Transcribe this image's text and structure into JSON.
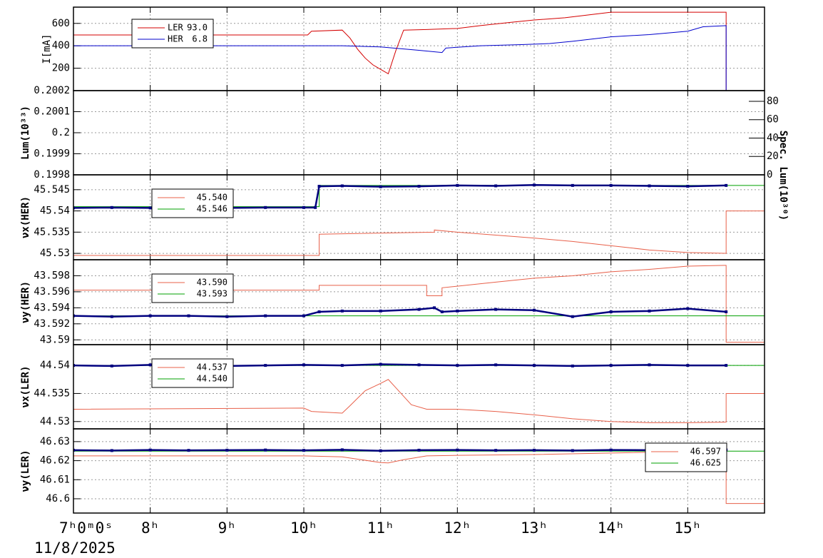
{
  "chart_data": [
    {
      "type": "line",
      "ylabel": "I[mA]",
      "xlim": [
        7,
        16
      ],
      "ylim": [
        0,
        745
      ],
      "yticks": [
        200,
        400,
        600
      ],
      "grid": true,
      "legend": "upper left",
      "series": [
        {
          "name": "LER",
          "legend_label": "93.0",
          "color": "#d40000",
          "x": [
            7,
            10.05,
            10.1,
            10.5,
            10.6,
            10.7,
            10.8,
            10.9,
            11.0,
            11.1,
            11.2,
            11.3,
            11.6,
            12.0,
            12.3,
            12.7,
            13.0,
            13.4,
            13.7,
            14.0,
            15.5,
            15.5,
            16
          ],
          "values": [
            497,
            497,
            530,
            540,
            470,
            370,
            290,
            230,
            190,
            150,
            360,
            540,
            545,
            555,
            580,
            610,
            630,
            650,
            675,
            700,
            700,
            0,
            0
          ]
        },
        {
          "name": "HER",
          "legend_label": "6.8",
          "color": "#0000cc",
          "x": [
            7,
            10.5,
            11.0,
            11.5,
            11.8,
            11.85,
            12.3,
            12.8,
            13.2,
            13.5,
            14.0,
            14.5,
            15.0,
            15.2,
            15.5,
            15.5,
            16
          ],
          "values": [
            400,
            400,
            390,
            360,
            340,
            380,
            400,
            410,
            420,
            440,
            480,
            500,
            530,
            570,
            580,
            0,
            0
          ]
        }
      ]
    },
    {
      "type": "line",
      "ylabel": "Lum(10³³)",
      "y2label": "Spec. Lum(10³⁰)",
      "xlim": [
        7,
        16
      ],
      "ylim": [
        0.1998,
        0.2002
      ],
      "yticks": [
        0.1998,
        0.1999,
        0.2,
        0.2001,
        0.2002
      ],
      "y2lim": [
        0,
        91.6
      ],
      "y2ticks": [
        0,
        20,
        40,
        60,
        80
      ],
      "grid": true,
      "series": []
    },
    {
      "type": "line",
      "ylabel": "νx(HER)",
      "xlim": [
        7,
        16
      ],
      "ylim": [
        45.5285,
        45.5485
      ],
      "yticks": [
        45.53,
        45.535,
        45.54,
        45.545
      ],
      "grid": true,
      "legend": "upper left",
      "series": [
        {
          "name": "45.540",
          "color": "#e8604a",
          "x": [
            7,
            10.2,
            10.2,
            11.7,
            11.7,
            12,
            12.5,
            13,
            13.5,
            14,
            14.5,
            15,
            15.5,
            15.5,
            16
          ],
          "values": [
            45.5295,
            45.5295,
            45.5345,
            45.535,
            45.5355,
            45.535,
            45.5343,
            45.5336,
            45.5328,
            45.5318,
            45.5308,
            45.5302,
            45.53,
            45.54,
            45.54
          ]
        },
        {
          "name": "45.546",
          "color": "#00a000",
          "x": [
            7,
            10.2,
            10.2,
            16
          ],
          "values": [
            45.541,
            45.541,
            45.546,
            45.546
          ]
        },
        {
          "color": "#00007f",
          "markers": true,
          "x": [
            7,
            7.5,
            8,
            8.5,
            9,
            9.5,
            10,
            10.15,
            10.2,
            10.5,
            11,
            11.5,
            12,
            12.5,
            13,
            13.5,
            14,
            14.5,
            15,
            15.5
          ],
          "values": [
            45.5407,
            45.5408,
            45.5407,
            45.5408,
            45.5407,
            45.5408,
            45.5408,
            45.5408,
            45.5458,
            45.5459,
            45.5457,
            45.5458,
            45.546,
            45.5459,
            45.5461,
            45.546,
            45.546,
            45.5459,
            45.5458,
            45.546
          ]
        }
      ]
    },
    {
      "type": "line",
      "ylabel": "νy(HER)",
      "xlim": [
        7,
        16
      ],
      "ylim": [
        43.5894,
        43.6
      ],
      "yticks": [
        43.59,
        43.592,
        43.594,
        43.596,
        43.598
      ],
      "grid": true,
      "legend": "upper left",
      "series": [
        {
          "name": "43.590",
          "color": "#e8604a",
          "x": [
            7,
            10.2,
            10.2,
            11.6,
            11.6,
            11.8,
            11.8,
            12.5,
            13,
            13.5,
            14,
            14.5,
            15,
            15.5,
            15.5,
            16
          ],
          "values": [
            43.5962,
            43.5962,
            43.5968,
            43.5968,
            43.5955,
            43.5955,
            43.5965,
            43.5972,
            43.5977,
            43.598,
            43.5985,
            43.5988,
            43.5992,
            43.5993,
            43.5897,
            43.5897
          ]
        },
        {
          "name": "43.593",
          "color": "#00a000",
          "x": [
            7,
            16
          ],
          "values": [
            43.593,
            43.593
          ]
        },
        {
          "color": "#00007f",
          "markers": true,
          "x": [
            7,
            7.5,
            8,
            8.5,
            9,
            9.5,
            10,
            10.2,
            10.5,
            11,
            11.5,
            11.7,
            11.8,
            12,
            12.5,
            13,
            13.5,
            14,
            14.5,
            15,
            15.5
          ],
          "values": [
            43.593,
            43.5929,
            43.593,
            43.593,
            43.5929,
            43.593,
            43.593,
            43.5935,
            43.5936,
            43.5936,
            43.5938,
            43.594,
            43.5935,
            43.5936,
            43.5938,
            43.5937,
            43.5929,
            43.5935,
            43.5936,
            43.5939,
            43.5935
          ]
        }
      ]
    },
    {
      "type": "line",
      "ylabel": "νx(LER)",
      "xlim": [
        7,
        16
      ],
      "ylim": [
        44.5287,
        44.5437
      ],
      "yticks": [
        44.53,
        44.535,
        44.54
      ],
      "grid": true,
      "legend": "upper left",
      "series": [
        {
          "name": "44.537",
          "color": "#e8604a",
          "x": [
            7,
            10,
            10.1,
            10.5,
            10.6,
            10.8,
            11.0,
            11.1,
            11.2,
            11.4,
            11.6,
            12,
            12.5,
            13,
            13.5,
            14,
            14.5,
            15,
            15.5,
            15.5,
            16
          ],
          "values": [
            44.5322,
            44.5324,
            44.5318,
            44.5315,
            44.5328,
            44.5355,
            44.5368,
            44.5375,
            44.536,
            44.533,
            44.5322,
            44.5322,
            44.5318,
            44.5312,
            44.5305,
            44.53,
            44.5298,
            44.5298,
            44.5299,
            44.535,
            44.535
          ]
        },
        {
          "name": "44.540",
          "color": "#00a000",
          "x": [
            7,
            16
          ],
          "values": [
            44.54,
            44.54
          ]
        },
        {
          "color": "#00007f",
          "markers": true,
          "x": [
            7,
            7.5,
            8,
            8.5,
            9,
            9.5,
            10,
            10.5,
            11,
            11.5,
            12,
            12.5,
            13,
            13.5,
            14,
            14.5,
            15,
            15.5
          ],
          "values": [
            44.54,
            44.5399,
            44.5401,
            44.54,
            44.5399,
            44.54,
            44.5401,
            44.54,
            44.5402,
            44.5401,
            44.54,
            44.5401,
            44.54,
            44.5399,
            44.54,
            44.5401,
            44.54,
            44.54
          ]
        }
      ]
    },
    {
      "type": "line",
      "ylabel": "νy(LER)",
      "xlim": [
        7,
        16
      ],
      "ylim": [
        46.5925,
        46.6367
      ],
      "yticks": [
        46.6,
        46.61,
        46.62,
        46.63
      ],
      "grid": true,
      "legend": "upper right",
      "xticks": [
        {
          "value": 7,
          "label": "7ʰ0ᵐ0ˢ"
        },
        {
          "value": 8,
          "label": "8ʰ"
        },
        {
          "value": 9,
          "label": "9ʰ"
        },
        {
          "value": 10,
          "label": "10ʰ"
        },
        {
          "value": 11,
          "label": "11ʰ"
        },
        {
          "value": 12,
          "label": "12ʰ"
        },
        {
          "value": 13,
          "label": "13ʰ"
        },
        {
          "value": 14,
          "label": "14ʰ"
        },
        {
          "value": 15,
          "label": "15ʰ"
        }
      ],
      "date": "11/8/2025",
      "series": [
        {
          "name": "46.597",
          "color": "#e8604a",
          "x": [
            7,
            10,
            10.5,
            11,
            11.1,
            11.3,
            11.6,
            12,
            13,
            14,
            15,
            15.5,
            15.5,
            16
          ],
          "values": [
            46.6225,
            46.6225,
            46.622,
            46.619,
            46.6188,
            46.6205,
            46.6225,
            46.6228,
            46.6232,
            46.624,
            46.6248,
            46.625,
            46.5975,
            46.5975
          ]
        },
        {
          "name": "46.625",
          "color": "#00a000",
          "x": [
            7,
            16
          ],
          "values": [
            46.625,
            46.625
          ]
        },
        {
          "color": "#00007f",
          "markers": true,
          "x": [
            7,
            7.5,
            8,
            8.5,
            9,
            9.5,
            10,
            10.5,
            11,
            11.5,
            12,
            12.5,
            13,
            13.5,
            14,
            14.5,
            15,
            15.5
          ],
          "values": [
            46.6255,
            46.6253,
            46.6256,
            46.6254,
            46.6255,
            46.6256,
            46.6254,
            46.6257,
            46.6252,
            46.6255,
            46.6256,
            46.6254,
            46.6255,
            46.6253,
            46.6256,
            46.6255,
            46.6254,
            46.6256
          ]
        }
      ]
    }
  ]
}
